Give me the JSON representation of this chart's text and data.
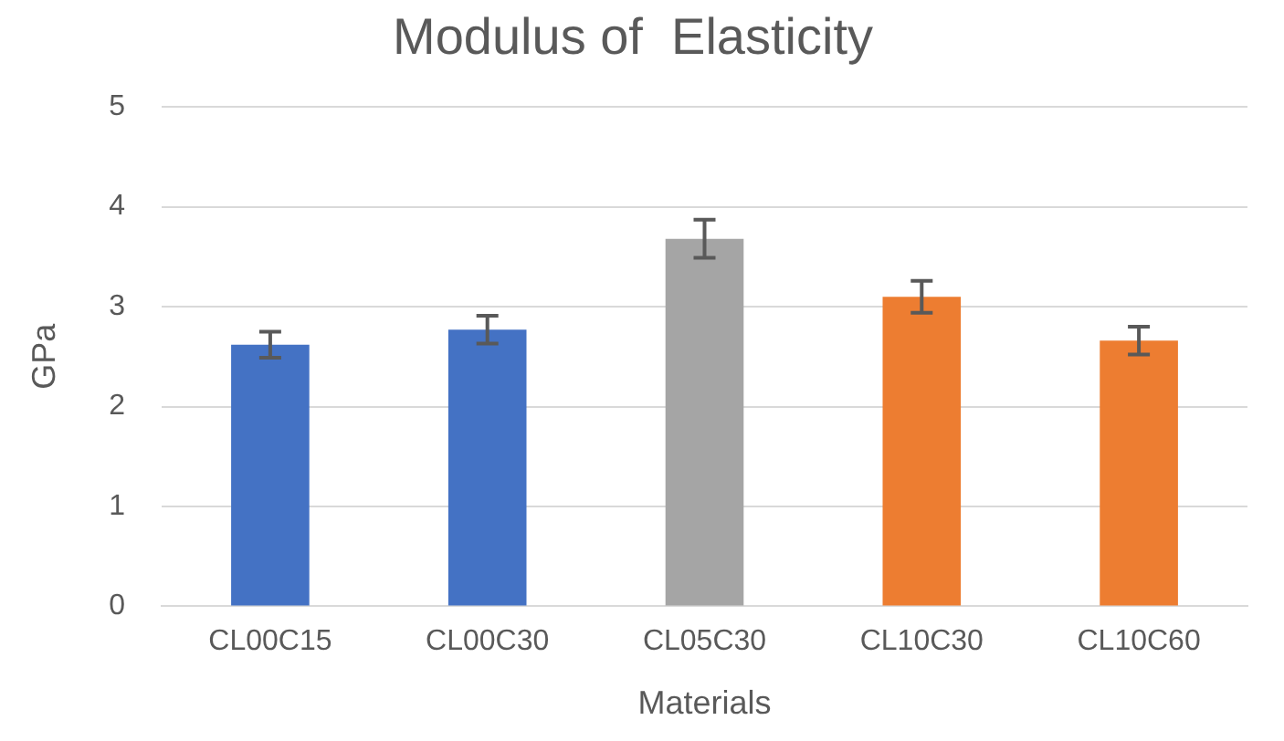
{
  "chart_data": {
    "type": "bar",
    "title": "Modulus of  Elasticity",
    "xlabel": "Materials",
    "ylabel": "GPa",
    "categories": [
      "CL00C15",
      "CL00C30",
      "CL05C30",
      "CL10C30",
      "CL10C60"
    ],
    "values": [
      2.62,
      2.77,
      3.68,
      3.1,
      2.66
    ],
    "errors": [
      0.13,
      0.14,
      0.19,
      0.16,
      0.14
    ],
    "colors": [
      "#4472c4",
      "#4472c4",
      "#a5a5a5",
      "#ed7d31",
      "#ed7d31"
    ],
    "ylim": [
      0,
      5
    ],
    "yticks": [
      0,
      1,
      2,
      3,
      4,
      5
    ],
    "grid": "y",
    "legend": false
  }
}
